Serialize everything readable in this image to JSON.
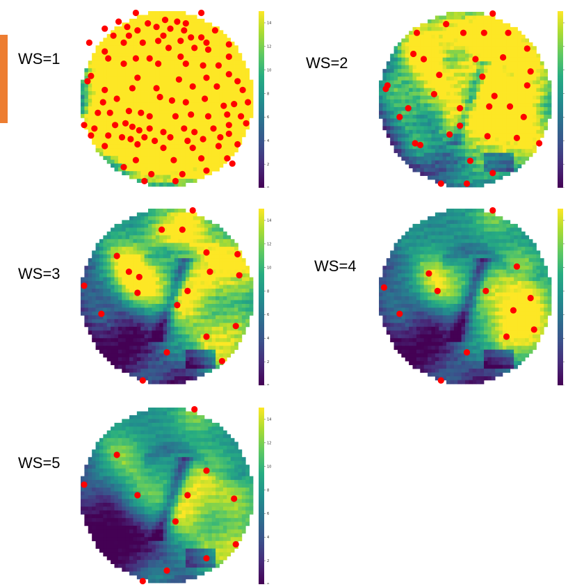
{
  "colors": {
    "accent_bar": "#ed7d31",
    "marker": "#ff0000",
    "colormap": "viridis"
  },
  "chart_data": [
    {
      "type": "heatmap",
      "label": "WS=1",
      "colorbar": {
        "min": 0,
        "max": 15,
        "ticks": [
          "0",
          "2",
          "4",
          "6",
          "8",
          "10",
          "12",
          "14"
        ]
      },
      "markers": [
        [
          0.32,
          0.01
        ],
        [
          0.7,
          0.01
        ],
        [
          0.49,
          0.05
        ],
        [
          0.22,
          0.06
        ],
        [
          0.39,
          0.07
        ],
        [
          0.56,
          0.06
        ],
        [
          0.61,
          0.07
        ],
        [
          0.27,
          0.09
        ],
        [
          0.44,
          0.09
        ],
        [
          0.52,
          0.1
        ],
        [
          0.14,
          0.1
        ],
        [
          0.33,
          0.11
        ],
        [
          0.6,
          0.11
        ],
        [
          0.78,
          0.11
        ],
        [
          0.19,
          0.14
        ],
        [
          0.28,
          0.14
        ],
        [
          0.48,
          0.14
        ],
        [
          0.64,
          0.15
        ],
        [
          0.7,
          0.15
        ],
        [
          0.05,
          0.18
        ],
        [
          0.25,
          0.18
        ],
        [
          0.36,
          0.18
        ],
        [
          0.45,
          0.17
        ],
        [
          0.58,
          0.17
        ],
        [
          0.73,
          0.18
        ],
        [
          0.86,
          0.19
        ],
        [
          0.14,
          0.23
        ],
        [
          0.51,
          0.21
        ],
        [
          0.66,
          0.21
        ],
        [
          0.74,
          0.22
        ],
        [
          0.16,
          0.27
        ],
        [
          0.32,
          0.27
        ],
        [
          0.4,
          0.27
        ],
        [
          0.58,
          0.26
        ],
        [
          0.86,
          0.26
        ],
        [
          0.25,
          0.3
        ],
        [
          0.45,
          0.3
        ],
        [
          0.61,
          0.3
        ],
        [
          0.71,
          0.31
        ],
        [
          0.8,
          0.31
        ],
        [
          0.06,
          0.37
        ],
        [
          0.04,
          0.4
        ],
        [
          0.33,
          0.38
        ],
        [
          0.57,
          0.39
        ],
        [
          0.73,
          0.38
        ],
        [
          0.86,
          0.36
        ],
        [
          0.91,
          0.4
        ],
        [
          0.14,
          0.45
        ],
        [
          0.3,
          0.44
        ],
        [
          0.44,
          0.44
        ],
        [
          0.65,
          0.43
        ],
        [
          0.79,
          0.43
        ],
        [
          0.94,
          0.45
        ],
        [
          0.13,
          0.52
        ],
        [
          0.21,
          0.5
        ],
        [
          0.46,
          0.49
        ],
        [
          0.53,
          0.51
        ],
        [
          0.61,
          0.52
        ],
        [
          0.72,
          0.5
        ],
        [
          0.83,
          0.54
        ],
        [
          0.89,
          0.53
        ],
        [
          0.97,
          0.52
        ],
        [
          0.1,
          0.58
        ],
        [
          0.17,
          0.58
        ],
        [
          0.28,
          0.57
        ],
        [
          0.35,
          0.58
        ],
        [
          0.4,
          0.6
        ],
        [
          0.55,
          0.6
        ],
        [
          0.64,
          0.59
        ],
        [
          0.74,
          0.6
        ],
        [
          0.85,
          0.59
        ],
        [
          0.93,
          0.6
        ],
        [
          0.02,
          0.65
        ],
        [
          0.08,
          0.67
        ],
        [
          0.2,
          0.65
        ],
        [
          0.26,
          0.64
        ],
        [
          0.3,
          0.66
        ],
        [
          0.34,
          0.68
        ],
        [
          0.4,
          0.67
        ],
        [
          0.48,
          0.69
        ],
        [
          0.6,
          0.67
        ],
        [
          0.66,
          0.69
        ],
        [
          0.77,
          0.67
        ],
        [
          0.86,
          0.65
        ],
        [
          0.96,
          0.64
        ],
        [
          0.06,
          0.71
        ],
        [
          0.16,
          0.71
        ],
        [
          0.24,
          0.72
        ],
        [
          0.29,
          0.73
        ],
        [
          0.37,
          0.72
        ],
        [
          0.43,
          0.74
        ],
        [
          0.52,
          0.72
        ],
        [
          0.62,
          0.74
        ],
        [
          0.71,
          0.73
        ],
        [
          0.81,
          0.72
        ],
        [
          0.86,
          0.7
        ],
        [
          0.14,
          0.77
        ],
        [
          0.33,
          0.76
        ],
        [
          0.48,
          0.78
        ],
        [
          0.65,
          0.78
        ],
        [
          0.8,
          0.77
        ],
        [
          0.91,
          0.76
        ],
        [
          0.32,
          0.85
        ],
        [
          0.54,
          0.85
        ],
        [
          0.7,
          0.84
        ],
        [
          0.85,
          0.84
        ],
        [
          0.88,
          0.87
        ],
        [
          0.25,
          0.89
        ],
        [
          0.41,
          0.93
        ],
        [
          0.59,
          0.93
        ],
        [
          0.73,
          0.91
        ],
        [
          0.37,
          0.97
        ],
        [
          0.55,
          0.97
        ]
      ]
    },
    {
      "type": "heatmap",
      "label": "WS=2",
      "colorbar": {
        "min": 0,
        "max": 15,
        "ticks": [
          "",
          "",
          "",
          "",
          "",
          "",
          "",
          ""
        ]
      },
      "markers": [
        [
          0.66,
          0.01
        ],
        [
          0.39,
          0.07
        ],
        [
          0.22,
          0.12
        ],
        [
          0.49,
          0.12
        ],
        [
          0.61,
          0.12
        ],
        [
          0.75,
          0.12
        ],
        [
          0.86,
          0.21
        ],
        [
          0.2,
          0.24
        ],
        [
          0.26,
          0.27
        ],
        [
          0.56,
          0.27
        ],
        [
          0.72,
          0.26
        ],
        [
          0.88,
          0.34
        ],
        [
          0.35,
          0.36
        ],
        [
          0.6,
          0.37
        ],
        [
          0.05,
          0.42
        ],
        [
          0.04,
          0.44
        ],
        [
          0.86,
          0.42
        ],
        [
          0.32,
          0.47
        ],
        [
          0.67,
          0.48
        ],
        [
          0.17,
          0.55
        ],
        [
          0.47,
          0.55
        ],
        [
          0.64,
          0.54
        ],
        [
          0.76,
          0.54
        ],
        [
          0.12,
          0.6
        ],
        [
          0.84,
          0.6
        ],
        [
          0.47,
          0.65
        ],
        [
          0.41,
          0.7
        ],
        [
          0.63,
          0.71
        ],
        [
          0.8,
          0.72
        ],
        [
          0.21,
          0.75
        ],
        [
          0.24,
          0.76
        ],
        [
          0.93,
          0.75
        ],
        [
          0.53,
          0.85
        ],
        [
          0.66,
          0.92
        ],
        [
          0.36,
          0.98
        ],
        [
          0.51,
          0.98
        ]
      ]
    },
    {
      "type": "heatmap",
      "label": "WS=3",
      "colorbar": {
        "min": 0,
        "max": 15,
        "ticks": [
          "0",
          "2",
          "4",
          "6",
          "8",
          "10",
          "12",
          "14"
        ]
      },
      "markers": [
        [
          0.65,
          0.01
        ],
        [
          0.47,
          0.12
        ],
        [
          0.59,
          0.12
        ],
        [
          0.73,
          0.25
        ],
        [
          0.91,
          0.26
        ],
        [
          0.21,
          0.27
        ],
        [
          0.28,
          0.36
        ],
        [
          0.75,
          0.36
        ],
        [
          0.34,
          0.39
        ],
        [
          0.02,
          0.44
        ],
        [
          0.92,
          0.38
        ],
        [
          0.33,
          0.48
        ],
        [
          0.62,
          0.47
        ],
        [
          0.56,
          0.55
        ],
        [
          0.12,
          0.6
        ],
        [
          0.9,
          0.67
        ],
        [
          0.73,
          0.73
        ],
        [
          0.5,
          0.82
        ],
        [
          0.82,
          0.87
        ],
        [
          0.36,
          0.98
        ]
      ]
    },
    {
      "type": "heatmap",
      "label": "WS=4",
      "colorbar": {
        "min": 0,
        "max": 15,
        "ticks": [
          "",
          "",
          "",
          "",
          "",
          "",
          "",
          ""
        ]
      },
      "markers": [
        [
          0.66,
          0.01
        ],
        [
          0.8,
          0.33
        ],
        [
          0.29,
          0.37
        ],
        [
          0.34,
          0.47
        ],
        [
          0.03,
          0.45
        ],
        [
          0.62,
          0.47
        ],
        [
          0.88,
          0.51
        ],
        [
          0.12,
          0.6
        ],
        [
          0.78,
          0.58
        ],
        [
          0.9,
          0.69
        ],
        [
          0.74,
          0.73
        ],
        [
          0.51,
          0.82
        ],
        [
          0.36,
          0.98
        ]
      ]
    },
    {
      "type": "heatmap",
      "label": "WS=5",
      "colorbar": {
        "min": 0,
        "max": 15,
        "ticks": [
          "0",
          "2",
          "4",
          "6",
          "8",
          "10",
          "12",
          "14"
        ]
      },
      "markers": [
        [
          0.66,
          0.01
        ],
        [
          0.21,
          0.27
        ],
        [
          0.73,
          0.36
        ],
        [
          0.02,
          0.44
        ],
        [
          0.33,
          0.5
        ],
        [
          0.62,
          0.5
        ],
        [
          0.89,
          0.52
        ],
        [
          0.55,
          0.65
        ],
        [
          0.9,
          0.78
        ],
        [
          0.73,
          0.86
        ],
        [
          0.5,
          0.93
        ],
        [
          0.36,
          0.99
        ]
      ]
    }
  ]
}
